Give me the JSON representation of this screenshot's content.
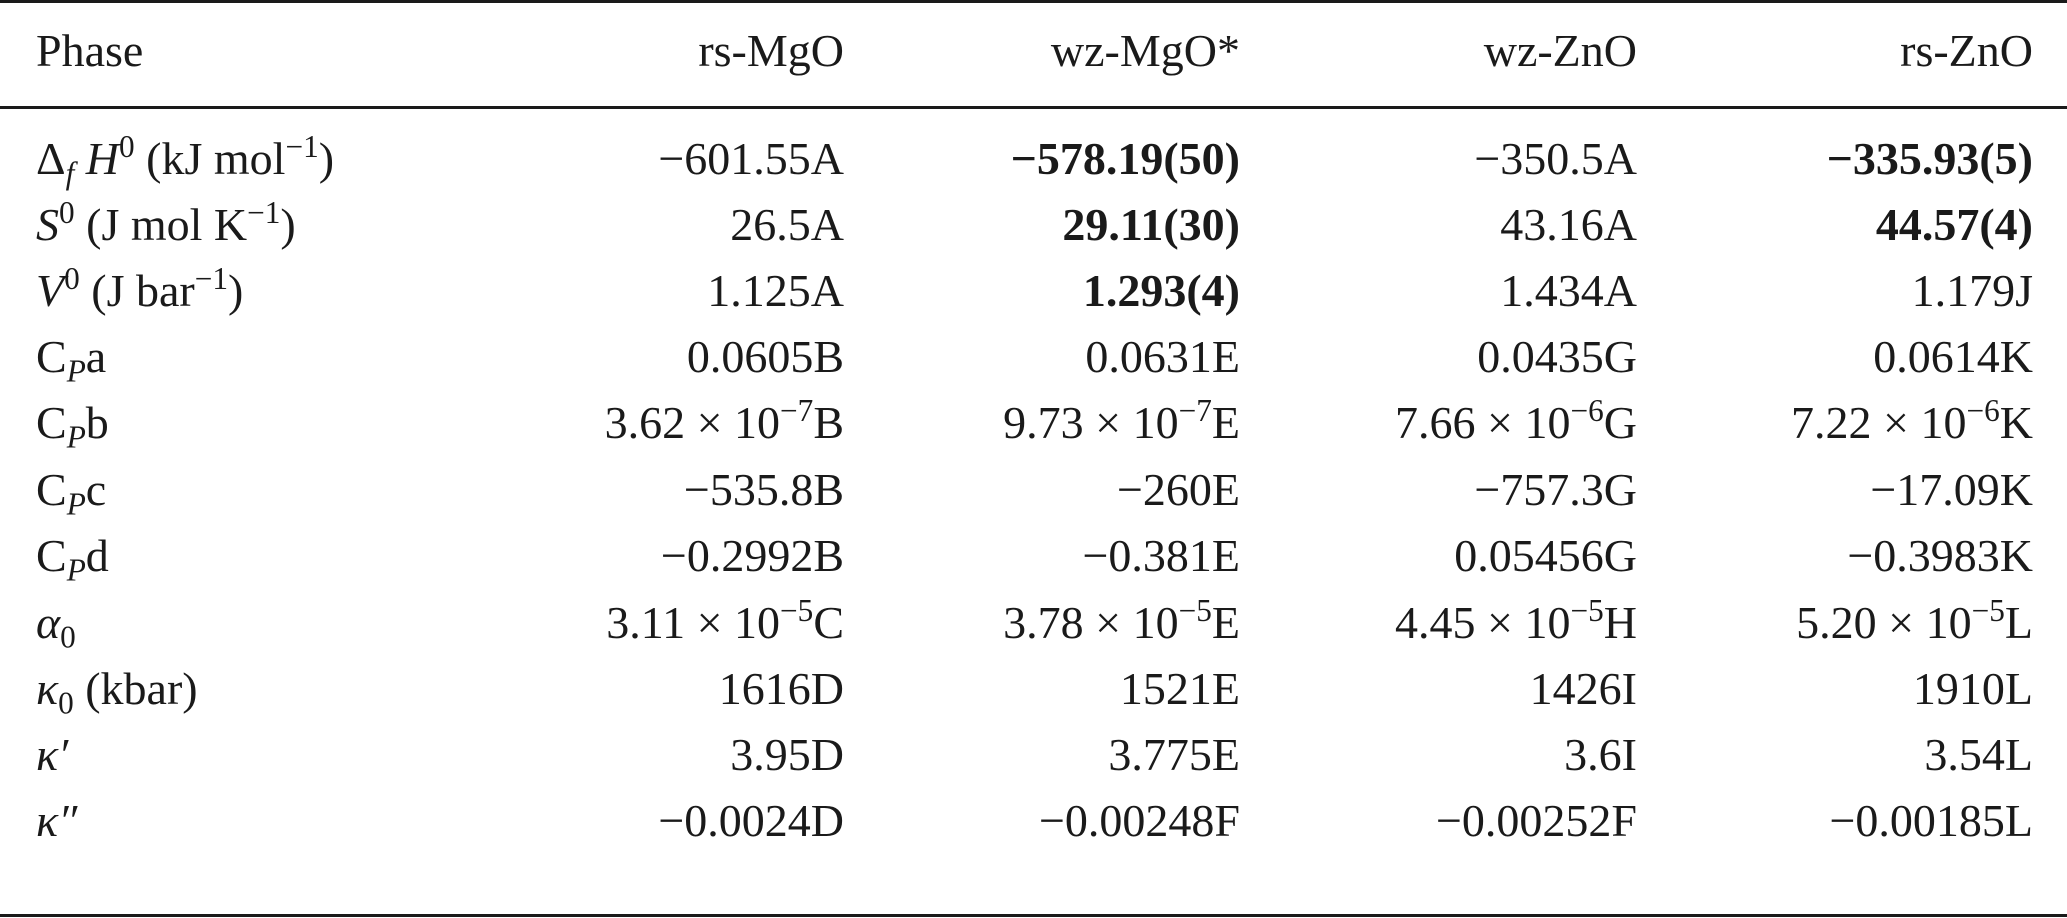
{
  "table": {
    "header": {
      "label": "Phase",
      "columns": [
        "rs-MgO",
        "wz-MgO*",
        "wz-ZnO",
        "rs-ZnO"
      ]
    },
    "rows": [
      {
        "label_main": "Δ",
        "label_sub": "f",
        "label_sym": "H",
        "label_sup": "0",
        "label_unit_pre": " (kJ mol",
        "label_unit_sup": "−1",
        "label_unit_post": ")",
        "cells": [
          {
            "v": "−601.55A",
            "bold": false
          },
          {
            "v": "−578.19(50)",
            "bold": true
          },
          {
            "v": "−350.5A",
            "bold": false
          },
          {
            "v": "−335.93(5)",
            "bold": true
          }
        ]
      },
      {
        "label_sym": "S",
        "label_sup": "0",
        "label_unit_pre": " (J mol K",
        "label_unit_sup": "−1",
        "label_unit_post": ")",
        "cells": [
          {
            "v": "26.5A",
            "bold": false
          },
          {
            "v": "29.11(30)",
            "bold": true
          },
          {
            "v": "43.16A",
            "bold": false
          },
          {
            "v": "44.57(4)",
            "bold": true
          }
        ]
      },
      {
        "label_sym": "V",
        "label_sup": "0",
        "label_unit_pre": " (J bar",
        "label_unit_sup": "−1",
        "label_unit_post": ")",
        "cells": [
          {
            "v": "1.125A",
            "bold": false
          },
          {
            "v": "1.293(4)",
            "bold": true
          },
          {
            "v": "1.434A",
            "bold": false
          },
          {
            "v": "1.179J",
            "bold": false
          }
        ]
      },
      {
        "label_main": "C",
        "label_sub": "P",
        "label_tail": "a",
        "cells": [
          {
            "v": "0.0605B"
          },
          {
            "v": "0.0631E"
          },
          {
            "v": "0.0435G"
          },
          {
            "v": "0.0614K"
          }
        ]
      },
      {
        "label_main": "C",
        "label_sub": "P",
        "label_tail": "b",
        "cells": [
          {
            "pre": "3.62 × 10",
            "sup": "−7",
            "post": "B"
          },
          {
            "pre": "9.73 × 10",
            "sup": "−7",
            "post": "E"
          },
          {
            "pre": "7.66 × 10",
            "sup": "−6",
            "post": "G"
          },
          {
            "pre": "7.22 × 10",
            "sup": "−6",
            "post": "K"
          }
        ]
      },
      {
        "label_main": "C",
        "label_sub": "P",
        "label_tail": "c",
        "cells": [
          {
            "v": "−535.8B"
          },
          {
            "v": "−260E"
          },
          {
            "v": "−757.3G"
          },
          {
            "v": "−17.09K"
          }
        ]
      },
      {
        "label_main": "C",
        "label_sub": "P",
        "label_tail": "d",
        "cells": [
          {
            "v": "−0.2992B"
          },
          {
            "v": "−0.381E"
          },
          {
            "v": "0.05456G"
          },
          {
            "v": "−0.3983K"
          }
        ]
      },
      {
        "label_sym": "α",
        "label_sub2": "0",
        "cells": [
          {
            "pre": "3.11 × 10",
            "sup": "−5",
            "post": "C"
          },
          {
            "pre": "3.78 × 10",
            "sup": "−5",
            "post": "E"
          },
          {
            "pre": "4.45 × 10",
            "sup": "−5",
            "post": "H"
          },
          {
            "pre": "5.20 × 10",
            "sup": "−5",
            "post": "L"
          }
        ]
      },
      {
        "label_sym": "κ",
        "label_sub2": "0",
        "label_unit_pre": " (kbar)",
        "cells": [
          {
            "v": "1616D"
          },
          {
            "v": "1521E"
          },
          {
            "v": "1426I"
          },
          {
            "v": "1910L"
          }
        ]
      },
      {
        "label_sym": "κ′",
        "cells": [
          {
            "v": "3.95D"
          },
          {
            "v": "3.775E"
          },
          {
            "v": "3.6I"
          },
          {
            "v": "3.54L"
          }
        ]
      },
      {
        "label_sym": "κ″",
        "cells": [
          {
            "v": "−0.0024D"
          },
          {
            "v": "−0.00248F"
          },
          {
            "v": "−0.00252F"
          },
          {
            "v": "−0.00185L"
          }
        ]
      }
    ]
  }
}
